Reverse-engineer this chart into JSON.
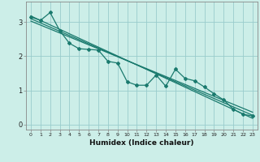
{
  "xlabel": "Humidex (Indice chaleur)",
  "bg_color": "#cceee8",
  "line_color": "#1a7a6e",
  "grid_color": "#99cccc",
  "xlim": [
    -0.5,
    23.5
  ],
  "ylim": [
    -0.15,
    3.6
  ],
  "xticks": [
    0,
    1,
    2,
    3,
    4,
    5,
    6,
    7,
    8,
    9,
    10,
    11,
    12,
    13,
    14,
    15,
    16,
    17,
    18,
    19,
    20,
    21,
    22,
    23
  ],
  "yticks": [
    0,
    1,
    2,
    3
  ],
  "zigzag_x": [
    0,
    1,
    2,
    3,
    4,
    5,
    6,
    7,
    8,
    9,
    10,
    11,
    12,
    13,
    14,
    15,
    16,
    17,
    18,
    19,
    20,
    21,
    22,
    23
  ],
  "zigzag_y": [
    3.15,
    3.05,
    3.28,
    2.75,
    2.38,
    2.22,
    2.2,
    2.18,
    1.85,
    1.8,
    1.25,
    1.15,
    1.15,
    1.45,
    1.12,
    1.62,
    1.35,
    1.28,
    1.1,
    0.9,
    0.72,
    0.45,
    0.3,
    0.25
  ],
  "line1_x": [
    0,
    23
  ],
  "line1_y": [
    3.18,
    0.18
  ],
  "line2_x": [
    0,
    23
  ],
  "line2_y": [
    3.1,
    0.27
  ],
  "line3_x": [
    0,
    23
  ],
  "line3_y": [
    3.03,
    0.36
  ]
}
